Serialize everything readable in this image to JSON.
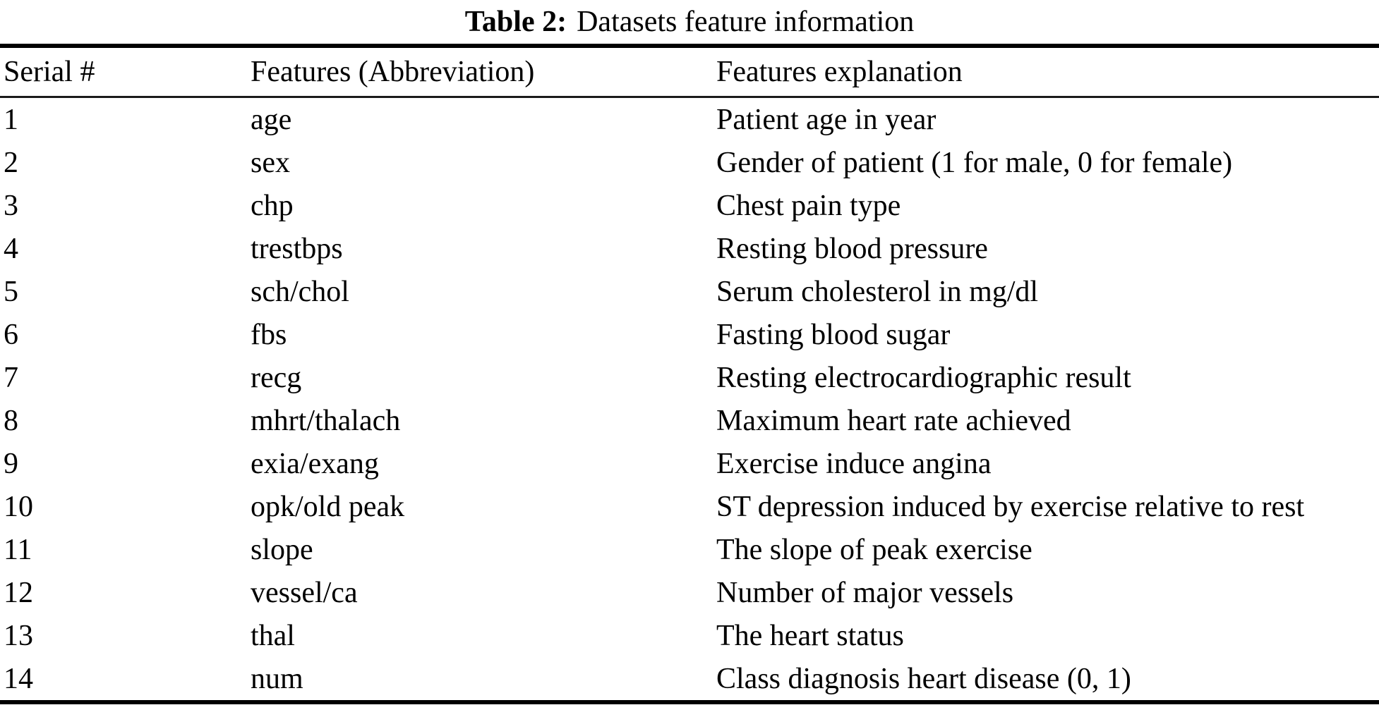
{
  "title": {
    "label": "Table 2:",
    "text": "Datasets feature information"
  },
  "table": {
    "columns": [
      "Serial #",
      "Features (Abbreviation)",
      "Features explanation"
    ],
    "rows": [
      {
        "serial": "1",
        "feature": "age",
        "explanation": "Patient age in year"
      },
      {
        "serial": "2",
        "feature": "sex",
        "explanation": "Gender of patient (1 for male, 0 for female)"
      },
      {
        "serial": "3",
        "feature": "chp",
        "explanation": "Chest pain type"
      },
      {
        "serial": "4",
        "feature": "trestbps",
        "explanation": "Resting blood pressure"
      },
      {
        "serial": "5",
        "feature": "sch/chol",
        "explanation": "Serum cholesterol in mg/dl"
      },
      {
        "serial": "6",
        "feature": "fbs",
        "explanation": "Fasting blood sugar"
      },
      {
        "serial": "7",
        "feature": "recg",
        "explanation": "Resting electrocardiographic result"
      },
      {
        "serial": "8",
        "feature": "mhrt/thalach",
        "explanation": "Maximum heart rate achieved"
      },
      {
        "serial": "9",
        "feature": "exia/exang",
        "explanation": "Exercise induce angina"
      },
      {
        "serial": "10",
        "feature": "opk/old peak",
        "explanation": "ST depression induced by exercise relative to rest"
      },
      {
        "serial": "11",
        "feature": "slope",
        "explanation": "The slope of peak exercise"
      },
      {
        "serial": "12",
        "feature": "vessel/ca",
        "explanation": "Number of major vessels"
      },
      {
        "serial": "13",
        "feature": "thal",
        "explanation": "The heart status"
      },
      {
        "serial": "14",
        "feature": "num",
        "explanation": "Class diagnosis heart disease (0, 1)"
      }
    ]
  },
  "colors": {
    "rule": "#000000",
    "text": "#000000",
    "background": "#ffffff"
  }
}
